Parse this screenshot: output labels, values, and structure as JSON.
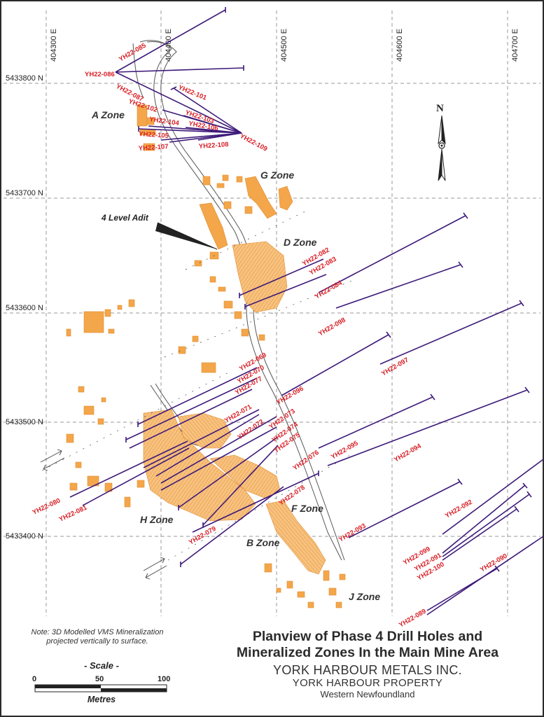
{
  "map": {
    "title_line1": "Planview of Phase 4 Drill Holes and",
    "title_line2": "Mineralized Zones In the Main Mine Area",
    "company": "YORK HARBOUR METALS INC.",
    "property": "YORK HARBOUR PROPERTY",
    "region": "Western Newfoundland",
    "note_line1": "Note: 3D Modelled VMS Mineralization",
    "note_line2": "projected vertically to surface."
  },
  "grid": {
    "eastings": [
      "404300 E",
      "404400 E",
      "404500 E",
      "404600 E",
      "404700 E"
    ],
    "northings": [
      "5433800 N",
      "5433700 N",
      "5433600 N",
      "5433500 N",
      "5433400 N"
    ]
  },
  "north_arrow": {
    "label": "N"
  },
  "scale_bar": {
    "title": "- Scale -",
    "ticks": [
      "0",
      "50",
      "100"
    ],
    "unit": "Metres"
  },
  "features": {
    "adit_label": "4 Level Adit"
  },
  "zones": [
    "A Zone",
    "G Zone",
    "D Zone",
    "H Zone",
    "F Zone",
    "B Zone",
    "J Zone"
  ],
  "drill_holes": [
    "YH22-085",
    "YH22-086",
    "YH22-087",
    "YH22-101",
    "YH22-102",
    "YH22-103",
    "YH22-104",
    "YH22-106",
    "YH22-105",
    "YH22-107",
    "YH22-108",
    "YH22-109",
    "YH22-082",
    "YH22-083",
    "YH22-084",
    "YH22-098",
    "YH22-097",
    "YH22-069",
    "YH22-070",
    "YH22-077",
    "YH22-096",
    "YH22-071",
    "YH22-072",
    "YH22-073",
    "YH22-074",
    "YH22-075",
    "YH22-094",
    "YH22-095",
    "YH22-076",
    "YH22-080",
    "YH22-081",
    "YH22-078",
    "YH22-079",
    "YH22-093",
    "YH22-092",
    "YH22-099",
    "YH22-091",
    "YH22-100",
    "YH22-090",
    "YH22-089"
  ],
  "colors": {
    "drill_trace": "#3d1a7a",
    "drill_label": "#d81f26",
    "mineralization": "#f4a64a",
    "grid": "#9a9a9a"
  }
}
